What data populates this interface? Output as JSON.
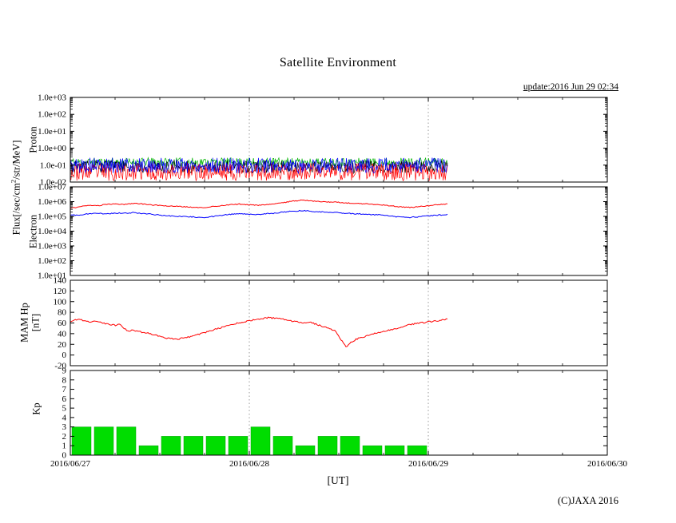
{
  "page": {
    "title": "Satellite Environment",
    "update_text": "update:2016 Jun 29 02:34",
    "xlabel": "[UT]",
    "copyright": "(C)JAXA 2016"
  },
  "labels": {
    "flux_pre": "Flux[/sec/cm",
    "flux_sup": "2",
    "flux_post": "/str/MeV]",
    "proton": "Proton",
    "electron": "Electron",
    "mam_line1": "MAM Hp",
    "mam_line2": "[nT]",
    "kp": "Kp"
  },
  "chart_data": {
    "type": "multi-panel-timeseries",
    "title": "Satellite Environment",
    "x_axis": {
      "range_days": 3,
      "ticks": [
        {
          "label": "2016/06/27",
          "day": 0
        },
        {
          "label": "2016/06/28",
          "day": 1
        },
        {
          "label": "2016/06/29",
          "day": 2
        },
        {
          "label": "2016/06/30",
          "day": 3
        }
      ],
      "minor_step_days": 0.25,
      "grid_days": [
        1,
        2
      ],
      "xlabel": "[UT]",
      "data_end_day": 2.107
    },
    "panels": [
      {
        "id": "proton",
        "label": "Proton",
        "type": "noise-line",
        "yscale": "log",
        "ylim": [
          0.01,
          1000
        ],
        "y_ticks": [
          {
            "label": "1.0e+03",
            "v": 1000
          },
          {
            "label": "1.0e+02",
            "v": 100
          },
          {
            "label": "1.0e+01",
            "v": 10
          },
          {
            "label": "1.0e+00",
            "v": 1
          },
          {
            "label": "1.0e-01",
            "v": 0.1
          },
          {
            "label": "1.0e-02",
            "v": 0.01
          }
        ],
        "series": [
          {
            "name": "green",
            "color": "#00b400",
            "center_exp": -0.82,
            "spread_exp": 0.26,
            "n": 520,
            "seed": 11
          },
          {
            "name": "black",
            "color": "#000000",
            "center_exp": -1.1,
            "spread_exp": 0.38,
            "n": 520,
            "seed": 31
          },
          {
            "name": "red",
            "color": "#ff0000",
            "center_exp": -1.4,
            "spread_exp": 0.52,
            "n": 520,
            "seed": 23
          },
          {
            "name": "blue",
            "color": "#0000ff",
            "center_exp": -1.02,
            "spread_exp": 0.46,
            "n": 520,
            "seed": 5
          }
        ]
      },
      {
        "id": "electron",
        "label": "Electron",
        "type": "line",
        "yscale": "log",
        "ylim": [
          10,
          10000000
        ],
        "y_ticks": [
          {
            "label": "1.0e+07",
            "v": 10000000
          },
          {
            "label": "1.0e+06",
            "v": 1000000
          },
          {
            "label": "1.0e+05",
            "v": 100000
          },
          {
            "label": "1.0e+04",
            "v": 10000
          },
          {
            "label": "1.0e+03",
            "v": 1000
          },
          {
            "label": "1.0e+02",
            "v": 100
          },
          {
            "label": "1.0e+01",
            "v": 10
          }
        ],
        "series": [
          {
            "name": "electron-high",
            "color": "#ff0000",
            "jitter": 0.03,
            "seed": 61,
            "points": [
              [
                0,
                350000.0
              ],
              [
                0.05,
                450000.0
              ],
              [
                0.1,
                550000.0
              ],
              [
                0.15,
                520000.0
              ],
              [
                0.2,
                650000.0
              ],
              [
                0.25,
                700000.0
              ],
              [
                0.3,
                650000.0
              ],
              [
                0.35,
                750000.0
              ],
              [
                0.4,
                700000.0
              ],
              [
                0.45,
                600000.0
              ],
              [
                0.5,
                550000.0
              ],
              [
                0.55,
                500000.0
              ],
              [
                0.6,
                480000.0
              ],
              [
                0.65,
                440000.0
              ],
              [
                0.7,
                410000.0
              ],
              [
                0.75,
                400000.0
              ],
              [
                0.8,
                460000.0
              ],
              [
                0.85,
                550000.0
              ],
              [
                0.9,
                620000.0
              ],
              [
                0.95,
                680000.0
              ],
              [
                1.0,
                600000.0
              ],
              [
                1.05,
                560000.0
              ],
              [
                1.1,
                620000.0
              ],
              [
                1.15,
                720000.0
              ],
              [
                1.2,
                900000.0
              ],
              [
                1.25,
                1100000.0
              ],
              [
                1.3,
                1250000.0
              ],
              [
                1.35,
                1100000.0
              ],
              [
                1.4,
                1000000.0
              ],
              [
                1.45,
                950000.0
              ],
              [
                1.5,
                900000.0
              ],
              [
                1.55,
                800000.0
              ],
              [
                1.6,
                750000.0
              ],
              [
                1.65,
                700000.0
              ],
              [
                1.7,
                640000.0
              ],
              [
                1.75,
                580000.0
              ],
              [
                1.8,
                500000.0
              ],
              [
                1.85,
                440000.0
              ],
              [
                1.9,
                400000.0
              ],
              [
                1.95,
                460000.0
              ],
              [
                2.0,
                520000.0
              ],
              [
                2.05,
                620000.0
              ],
              [
                2.107,
                700000.0
              ]
            ]
          },
          {
            "name": "electron-low",
            "color": "#0000ff",
            "jitter": 0.035,
            "seed": 87,
            "points": [
              [
                0,
                130000.0
              ],
              [
                0.05,
                120000.0
              ],
              [
                0.1,
                150000.0
              ],
              [
                0.15,
                160000.0
              ],
              [
                0.2,
                150000.0
              ],
              [
                0.25,
                170000.0
              ],
              [
                0.3,
                160000.0
              ],
              [
                0.35,
                180000.0
              ],
              [
                0.4,
                160000.0
              ],
              [
                0.45,
                140000.0
              ],
              [
                0.5,
                120000.0
              ],
              [
                0.55,
                110000.0
              ],
              [
                0.6,
                100000.0
              ],
              [
                0.65,
                95000.0
              ],
              [
                0.7,
                90000.0
              ],
              [
                0.75,
                85000.0
              ],
              [
                0.8,
                100000.0
              ],
              [
                0.85,
                120000.0
              ],
              [
                0.9,
                140000.0
              ],
              [
                0.95,
                150000.0
              ],
              [
                1.0,
                140000.0
              ],
              [
                1.05,
                130000.0
              ],
              [
                1.1,
                150000.0
              ],
              [
                1.15,
                170000.0
              ],
              [
                1.2,
                200000.0
              ],
              [
                1.25,
                230000.0
              ],
              [
                1.3,
                245000.0
              ],
              [
                1.35,
                220000.0
              ],
              [
                1.4,
                200000.0
              ],
              [
                1.45,
                190000.0
              ],
              [
                1.5,
                180000.0
              ],
              [
                1.55,
                160000.0
              ],
              [
                1.6,
                150000.0
              ],
              [
                1.65,
                140000.0
              ],
              [
                1.7,
                130000.0
              ],
              [
                1.75,
                120000.0
              ],
              [
                1.8,
                100000.0
              ],
              [
                1.85,
                90000.0
              ],
              [
                1.9,
                85000.0
              ],
              [
                1.95,
                95000.0
              ],
              [
                2.0,
                110000.0
              ],
              [
                2.05,
                120000.0
              ],
              [
                2.107,
                130000.0
              ]
            ]
          }
        ]
      },
      {
        "id": "mam",
        "label": "MAM Hp [nT]",
        "type": "line",
        "yscale": "linear",
        "ylim": [
          -20,
          140
        ],
        "y_ticks": [
          {
            "label": "140",
            "v": 140
          },
          {
            "label": "120",
            "v": 120
          },
          {
            "label": "100",
            "v": 100
          },
          {
            "label": "80",
            "v": 80
          },
          {
            "label": "60",
            "v": 60
          },
          {
            "label": "40",
            "v": 40
          },
          {
            "label": "20",
            "v": 20
          },
          {
            "label": "0",
            "v": 0
          },
          {
            "label": "-20",
            "v": -20
          }
        ],
        "series": [
          {
            "name": "hp",
            "color": "#ff0000",
            "jitter": 1.3,
            "seed": 19,
            "points": [
              [
                0,
                63
              ],
              [
                0.05,
                67
              ],
              [
                0.08,
                64
              ],
              [
                0.12,
                62
              ],
              [
                0.15,
                64
              ],
              [
                0.2,
                58
              ],
              [
                0.25,
                56
              ],
              [
                0.28,
                57
              ],
              [
                0.3,
                50
              ],
              [
                0.33,
                44
              ],
              [
                0.35,
                47
              ],
              [
                0.38,
                44
              ],
              [
                0.42,
                42
              ],
              [
                0.45,
                40
              ],
              [
                0.5,
                35
              ],
              [
                0.55,
                31
              ],
              [
                0.6,
                30
              ],
              [
                0.65,
                33
              ],
              [
                0.7,
                37
              ],
              [
                0.75,
                42
              ],
              [
                0.8,
                47
              ],
              [
                0.85,
                52
              ],
              [
                0.9,
                57
              ],
              [
                0.95,
                61
              ],
              [
                1.0,
                64
              ],
              [
                1.05,
                67
              ],
              [
                1.1,
                70
              ],
              [
                1.15,
                69
              ],
              [
                1.2,
                66
              ],
              [
                1.25,
                63
              ],
              [
                1.3,
                60
              ],
              [
                1.33,
                62
              ],
              [
                1.38,
                57
              ],
              [
                1.42,
                52
              ],
              [
                1.45,
                50
              ],
              [
                1.48,
                45
              ],
              [
                1.5,
                35
              ],
              [
                1.52,
                25
              ],
              [
                1.54,
                15
              ],
              [
                1.56,
                22
              ],
              [
                1.6,
                30
              ],
              [
                1.65,
                35
              ],
              [
                1.7,
                40
              ],
              [
                1.75,
                44
              ],
              [
                1.8,
                48
              ],
              [
                1.85,
                53
              ],
              [
                1.9,
                57
              ],
              [
                1.95,
                60
              ],
              [
                2.0,
                62
              ],
              [
                2.05,
                64
              ],
              [
                2.107,
                67
              ]
            ]
          }
        ]
      },
      {
        "id": "kp",
        "label": "Kp",
        "type": "bar",
        "yscale": "linear",
        "ylim": [
          0,
          9
        ],
        "y_ticks": [
          {
            "label": "9",
            "v": 9
          },
          {
            "label": "8",
            "v": 8
          },
          {
            "label": "7",
            "v": 7
          },
          {
            "label": "6",
            "v": 6
          },
          {
            "label": "5",
            "v": 5
          },
          {
            "label": "4",
            "v": 4
          },
          {
            "label": "3",
            "v": 3
          },
          {
            "label": "2",
            "v": 2
          },
          {
            "label": "1",
            "v": 1
          },
          {
            "label": "0",
            "v": 0
          }
        ],
        "bar_width_days": 0.125,
        "color": "#00dd00",
        "values": [
          3,
          3,
          3,
          1,
          2,
          2,
          2,
          2,
          3,
          2,
          1,
          2,
          2,
          1,
          1,
          1
        ]
      }
    ]
  }
}
